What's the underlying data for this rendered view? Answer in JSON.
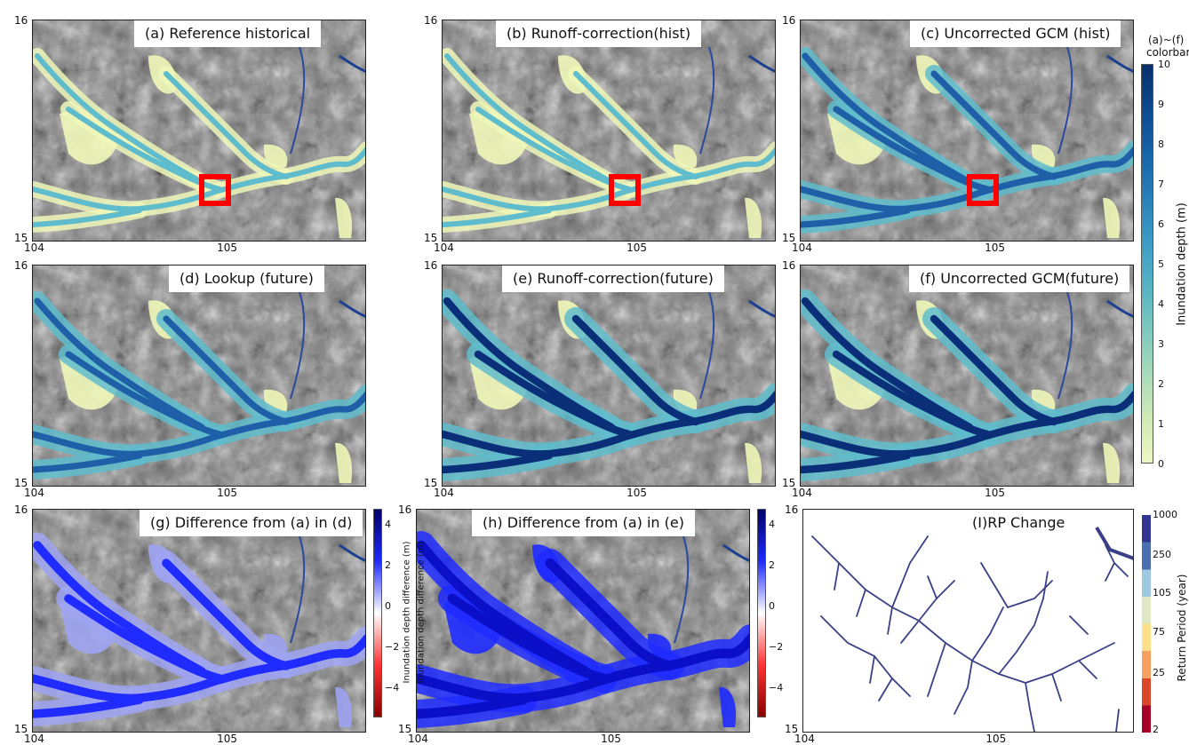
{
  "panels": {
    "a": {
      "title": "(a) Reference historical"
    },
    "b": {
      "title": "(b) Runoff-correction(hist)"
    },
    "c": {
      "title": "(c) Uncorrected GCM (hist)"
    },
    "d": {
      "title": "(d) Lookup (future)"
    },
    "e": {
      "title": "(e) Runoff-correction(future)"
    },
    "f": {
      "title": "(f) Uncorrected GCM(future)"
    },
    "g": {
      "title": "(g) Difference from (a) in (d)"
    },
    "h": {
      "title": "(h) Difference from (a) in (e)"
    },
    "i": {
      "title": "(I)RP Change"
    }
  },
  "axis": {
    "lat_top": "16",
    "lat_bottom": "15",
    "lon_left": "104",
    "lon_mid": "105"
  },
  "depth_colorbar": {
    "header_line1": "(a)~(f)",
    "header_line2": "colorbar",
    "label": "Inundation  depth  (m)",
    "ticks": [
      "10",
      "9",
      "8",
      "7",
      "6",
      "5",
      "4",
      "3",
      "2",
      "1",
      "0"
    ],
    "colors": [
      "#08306b",
      "#0d4a8e",
      "#1763a6",
      "#2a7fb8",
      "#3c9bc4",
      "#57b1c3",
      "#7cc8bf",
      "#a8dab9",
      "#cfeab5",
      "#eef7c4"
    ]
  },
  "diff_colorbar": {
    "label": "Inundation depth difference  (m)",
    "ticks": [
      "4",
      "2",
      "0",
      "−2",
      "−4"
    ]
  },
  "rp_colorbar": {
    "label": "Return  Period  (year)",
    "ticks": [
      "1000",
      "250",
      "105",
      "75",
      "25",
      "2"
    ],
    "colors": [
      "#313695",
      "#4a6fb0",
      "#9ecae1",
      "#dfe7c4",
      "#fde08b",
      "#f4a161",
      "#d9482a",
      "#a50026"
    ]
  },
  "colors": {
    "shallow": "#eef7b8",
    "mid": "#5fbccc",
    "deep": "#1f5fa8",
    "very_deep": "#0a2f78",
    "diff_pos": "#1f2bff",
    "diff_light": "#9fa4f2",
    "rp_line": "#3b3f86",
    "highlight_box": "#ff0000"
  }
}
